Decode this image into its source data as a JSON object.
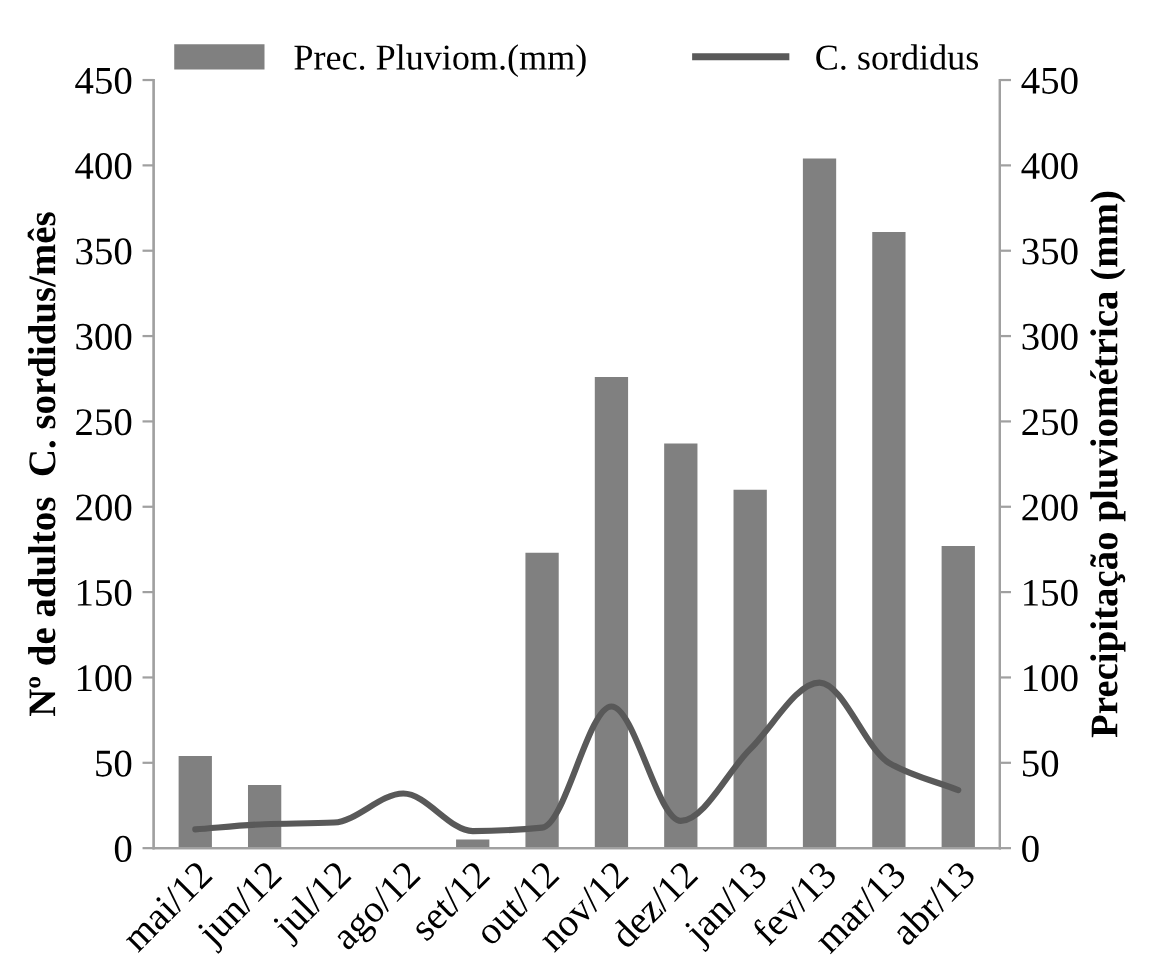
{
  "chart_data": {
    "type": "bar",
    "categories": [
      "mai/12",
      "jun/12",
      "jul/12",
      "ago/12",
      "set/12",
      "out/12",
      "nov/12",
      "dez/12",
      "jan/13",
      "fev/13",
      "mar/13",
      "abr/13"
    ],
    "series": [
      {
        "name": "Prec. Pluviom.(mm)",
        "axis": "y2",
        "color": "#808080",
        "values": [
          54,
          37,
          0,
          0,
          5,
          173,
          276,
          237,
          210,
          404,
          361,
          177
        ]
      },
      {
        "name": "C. sordidus",
        "type": "line",
        "axis": "y",
        "color": "#595959",
        "values": [
          11,
          14,
          15,
          32,
          10,
          12,
          83,
          16,
          58,
          97,
          50,
          34
        ]
      }
    ],
    "ylabel": "Nº de adultos  C. sordidus/mês",
    "y2label": "Precipitação pluviométrica (mm)",
    "ylim": [
      0,
      450
    ],
    "yticks": [
      0,
      50,
      100,
      150,
      200,
      250,
      300,
      350,
      400,
      450
    ],
    "y2lim": [
      0,
      450
    ],
    "y2ticks": [
      0,
      50,
      100,
      150,
      200,
      250,
      300,
      350,
      400,
      450
    ],
    "grid": false,
    "legend": "top",
    "marker": "none",
    "line_style": "solid"
  }
}
